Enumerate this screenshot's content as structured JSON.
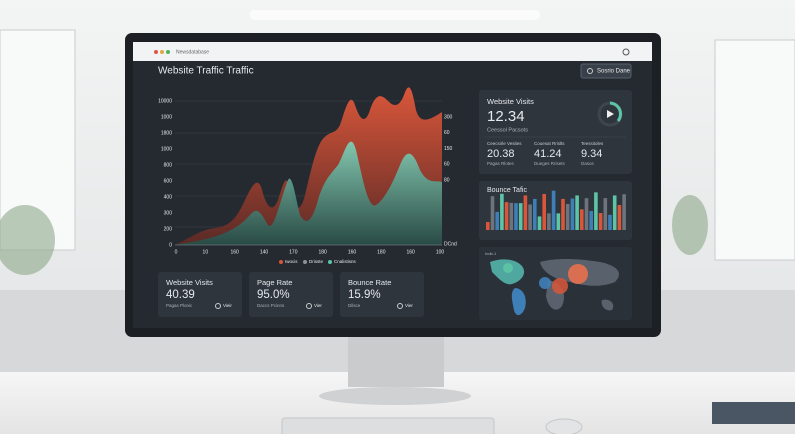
{
  "browser": {
    "address": "Newsdatabase"
  },
  "header": {
    "title": "Website Traffic Traffic",
    "button": "Sosrio Dane"
  },
  "chart": {
    "y_labels": [
      "10000",
      "1000",
      "1800",
      "1000",
      "800",
      "600",
      "400",
      "300",
      "200",
      "0"
    ],
    "y2_labels": [
      "300",
      "60",
      "150",
      "60",
      "80"
    ],
    "x_labels": [
      "0",
      "10",
      "160",
      "140",
      "170",
      "180",
      "160",
      "180",
      "160",
      "100"
    ],
    "x_end_label": "DCnd",
    "legend": [
      "Iwocis",
      "Drisste",
      "Cnalistisns"
    ]
  },
  "visits_panel": {
    "title": "Website Visits",
    "value": "12.34",
    "caption": "Ceessol Pacsots",
    "stats": [
      {
        "label": "Ceecsirle Vesites",
        "value": "20.38",
        "caption": "Pagas Rlotes"
      },
      {
        "label": "Couesat Rrislts",
        "value": "41.24",
        "caption": "Dueges Rrisets"
      },
      {
        "label": "Teessitoles",
        "value": "9.34",
        "caption": "Dasos"
      }
    ]
  },
  "bounce_panel": {
    "title": "Bounce Tafic"
  },
  "map_panel": {
    "title": "Indb-1"
  },
  "cards": [
    {
      "title": "Website Visits",
      "value": "40.39",
      "caption": "Pagas Plonic",
      "button": "Vieir"
    },
    {
      "title": "Page Rate",
      "value": "95.0%",
      "caption": "Daccs Pcinns",
      "button": "Vier"
    },
    {
      "title": "Bounce Rate",
      "value": "15.9%",
      "caption": "Dilsce",
      "button": "Vier"
    }
  ]
}
